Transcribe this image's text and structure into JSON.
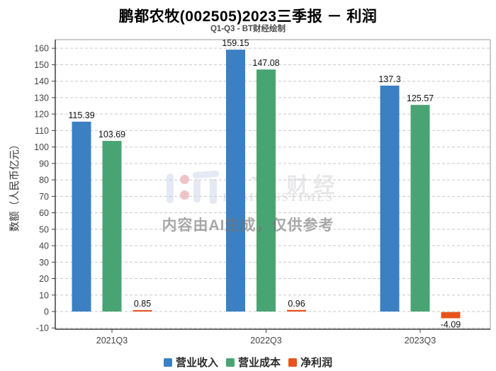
{
  "header": {
    "title": "鹏都农牧(002505)2023三季报 － 利润",
    "subtitle": "Q1-Q3 - BT财经绘制"
  },
  "watermark": {
    "logo_text": "ＢＴ 财经",
    "logo_subtext": "BUSINESSTIMES",
    "ai_notice": "内容由AI生成，仅供参考",
    "logo_color": "#e4e9f3",
    "logo_dot_color": "#f2c3c6"
  },
  "chart_data": {
    "type": "bar",
    "title": "鹏都农牧(002505)2023三季报 － 利润",
    "subtitle": "Q1-Q3 - BT财经绘制",
    "categories": [
      "2021Q3",
      "2022Q3",
      "2023Q3"
    ],
    "series": [
      {
        "name": "营业收入",
        "color": "#3b80c2",
        "values": [
          115.39,
          159.15,
          137.3
        ],
        "labels": [
          "115.39",
          "159.15",
          "137.3"
        ]
      },
      {
        "name": "营业成本",
        "color": "#49a473",
        "values": [
          103.69,
          147.08,
          125.57
        ],
        "labels": [
          "103.69",
          "147.08",
          "125.57"
        ]
      },
      {
        "name": "净利润",
        "color": "#e8531d",
        "values": [
          0.85,
          0.96,
          -4.09
        ],
        "labels": [
          "0.85",
          "0.96",
          "-4.09"
        ]
      }
    ],
    "xlabel": "",
    "ylabel": "数额（人民币亿元）",
    "ylim": [
      -10,
      165
    ],
    "ytick_step": 10,
    "ytick_min": -10,
    "ytick_max": 160,
    "grid": true,
    "grid_style": "dashed",
    "legend_position": "bottom",
    "value_labels_shown": true
  }
}
